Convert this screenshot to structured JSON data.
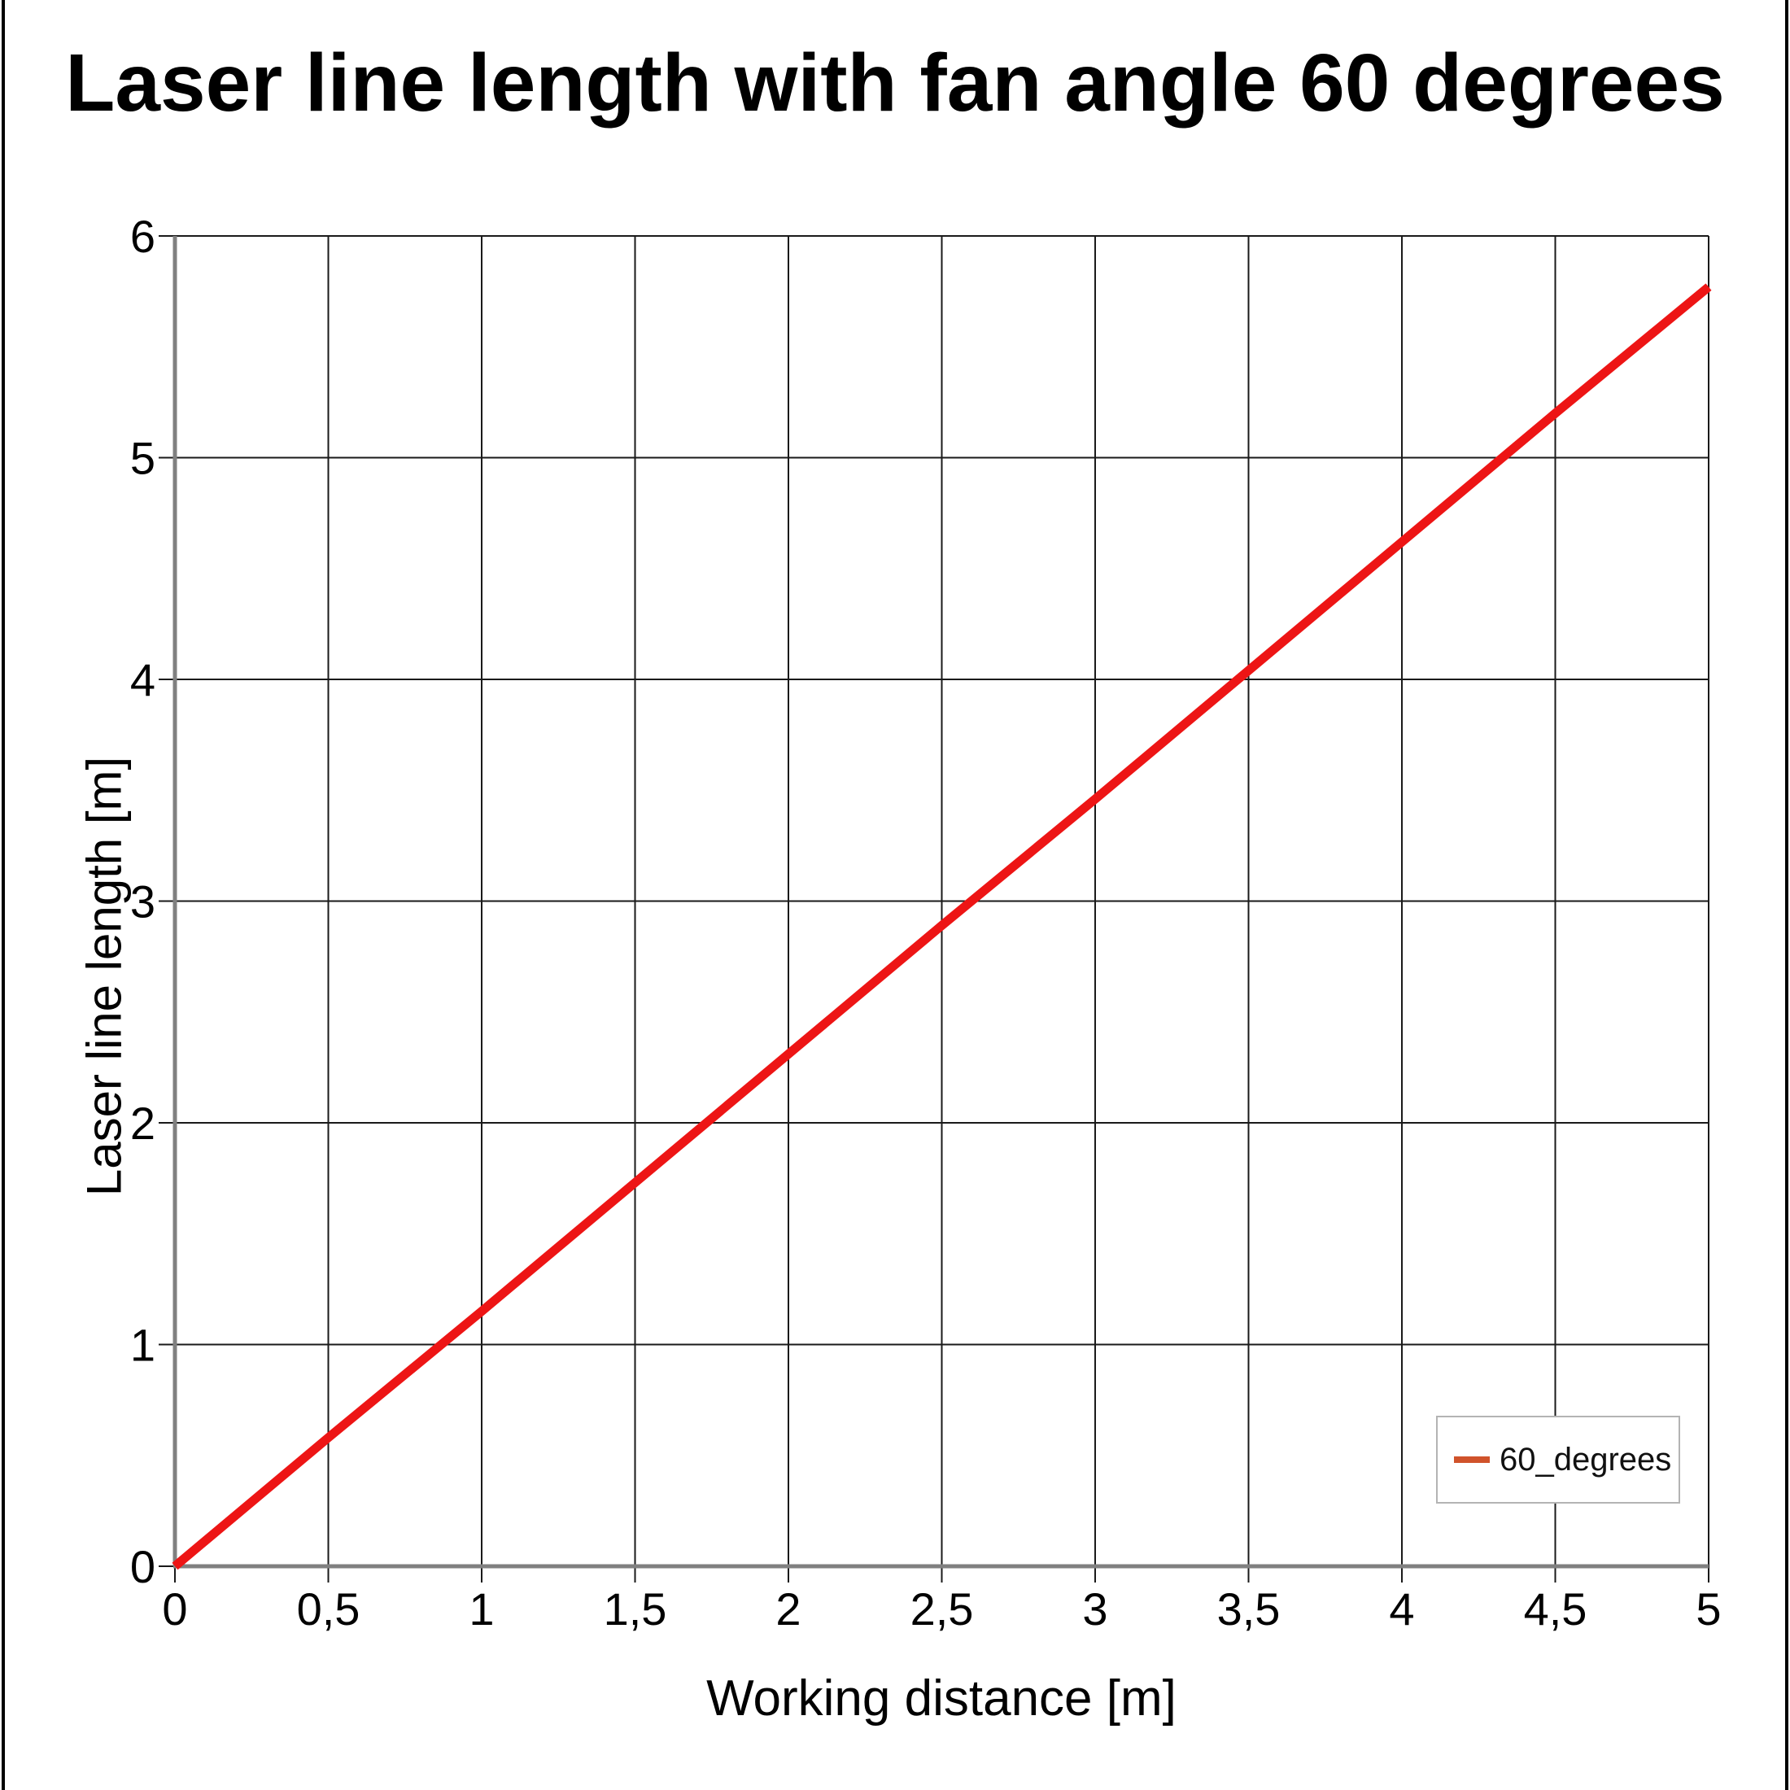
{
  "chart_data": {
    "type": "line",
    "title": "Laser line length with fan angle 60 degrees",
    "xlabel": "Working distance [m]",
    "ylabel": "Laser line length [m]",
    "xlim": [
      0,
      5
    ],
    "ylim": [
      0,
      6
    ],
    "grid": true,
    "decimal_separator": ",",
    "x_ticks": {
      "values": [
        0,
        0.5,
        1,
        1.5,
        2,
        2.5,
        3,
        3.5,
        4,
        4.5,
        5
      ],
      "labels": [
        "0",
        "0,5",
        "1",
        "1,5",
        "2",
        "2,5",
        "3",
        "3,5",
        "4",
        "4,5",
        "5"
      ]
    },
    "y_ticks": {
      "values": [
        0,
        1,
        2,
        3,
        4,
        5,
        6
      ],
      "labels": [
        "0",
        "1",
        "2",
        "3",
        "4",
        "5",
        "6"
      ]
    },
    "series": [
      {
        "name": "60_degrees",
        "color": "#ed1515",
        "x": [
          0,
          0.5,
          1,
          1.5,
          2,
          2.5,
          3,
          3.5,
          4,
          4.5,
          5
        ],
        "y": [
          0,
          0.58,
          1.15,
          1.73,
          2.31,
          2.89,
          3.46,
          4.04,
          4.62,
          5.2,
          5.77
        ]
      }
    ],
    "legend": {
      "position": "bottom-right",
      "entries": [
        {
          "label": "60_degrees",
          "marker_color": "#d0532b"
        }
      ]
    }
  },
  "colors": {
    "grid": "#1a1a1a",
    "axis": "#808080",
    "tick_text": "#000000",
    "legend_border": "#b4b4b4",
    "page_border": "#000000"
  }
}
